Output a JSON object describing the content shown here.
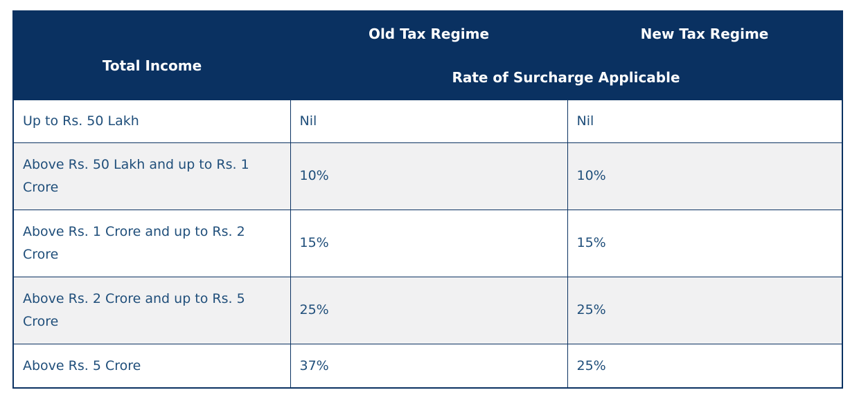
{
  "chart_data": {
    "type": "table",
    "header": {
      "total_income": "Total Income",
      "old_regime": "Old Tax Regime",
      "new_regime": "New Tax Regime",
      "surcharge_span": "Rate of Surcharge Applicable"
    },
    "rows": [
      {
        "income": "Up to Rs. 50 Lakh",
        "old": "Nil",
        "new": "Nil"
      },
      {
        "income": "Above Rs. 50 Lakh and up to Rs. 1 Crore",
        "old": "10%",
        "new": "10%"
      },
      {
        "income": "Above Rs. 1 Crore and up to Rs. 2 Crore",
        "old": "15%",
        "new": "15%"
      },
      {
        "income": "Above Rs. 2 Crore and up to Rs. 5 Crore",
        "old": "25%",
        "new": "25%"
      },
      {
        "income": "Above Rs. 5 Crore",
        "old": "37%",
        "new": "25%"
      }
    ],
    "layout": {
      "columns": [
        "Total Income",
        "Old Tax Regime",
        "New Tax Regime"
      ],
      "subheader_spans_columns": [
        "Old Tax Regime",
        "New Tax Regime"
      ],
      "alternating_rows": true
    }
  },
  "colors": {
    "header_bg": "#0a3161",
    "header_text": "#ffffff",
    "body_text": "#1f4e7a",
    "border": "#0a3161",
    "alt_row_bg": "#f1f1f2",
    "row_bg": "#ffffff"
  }
}
